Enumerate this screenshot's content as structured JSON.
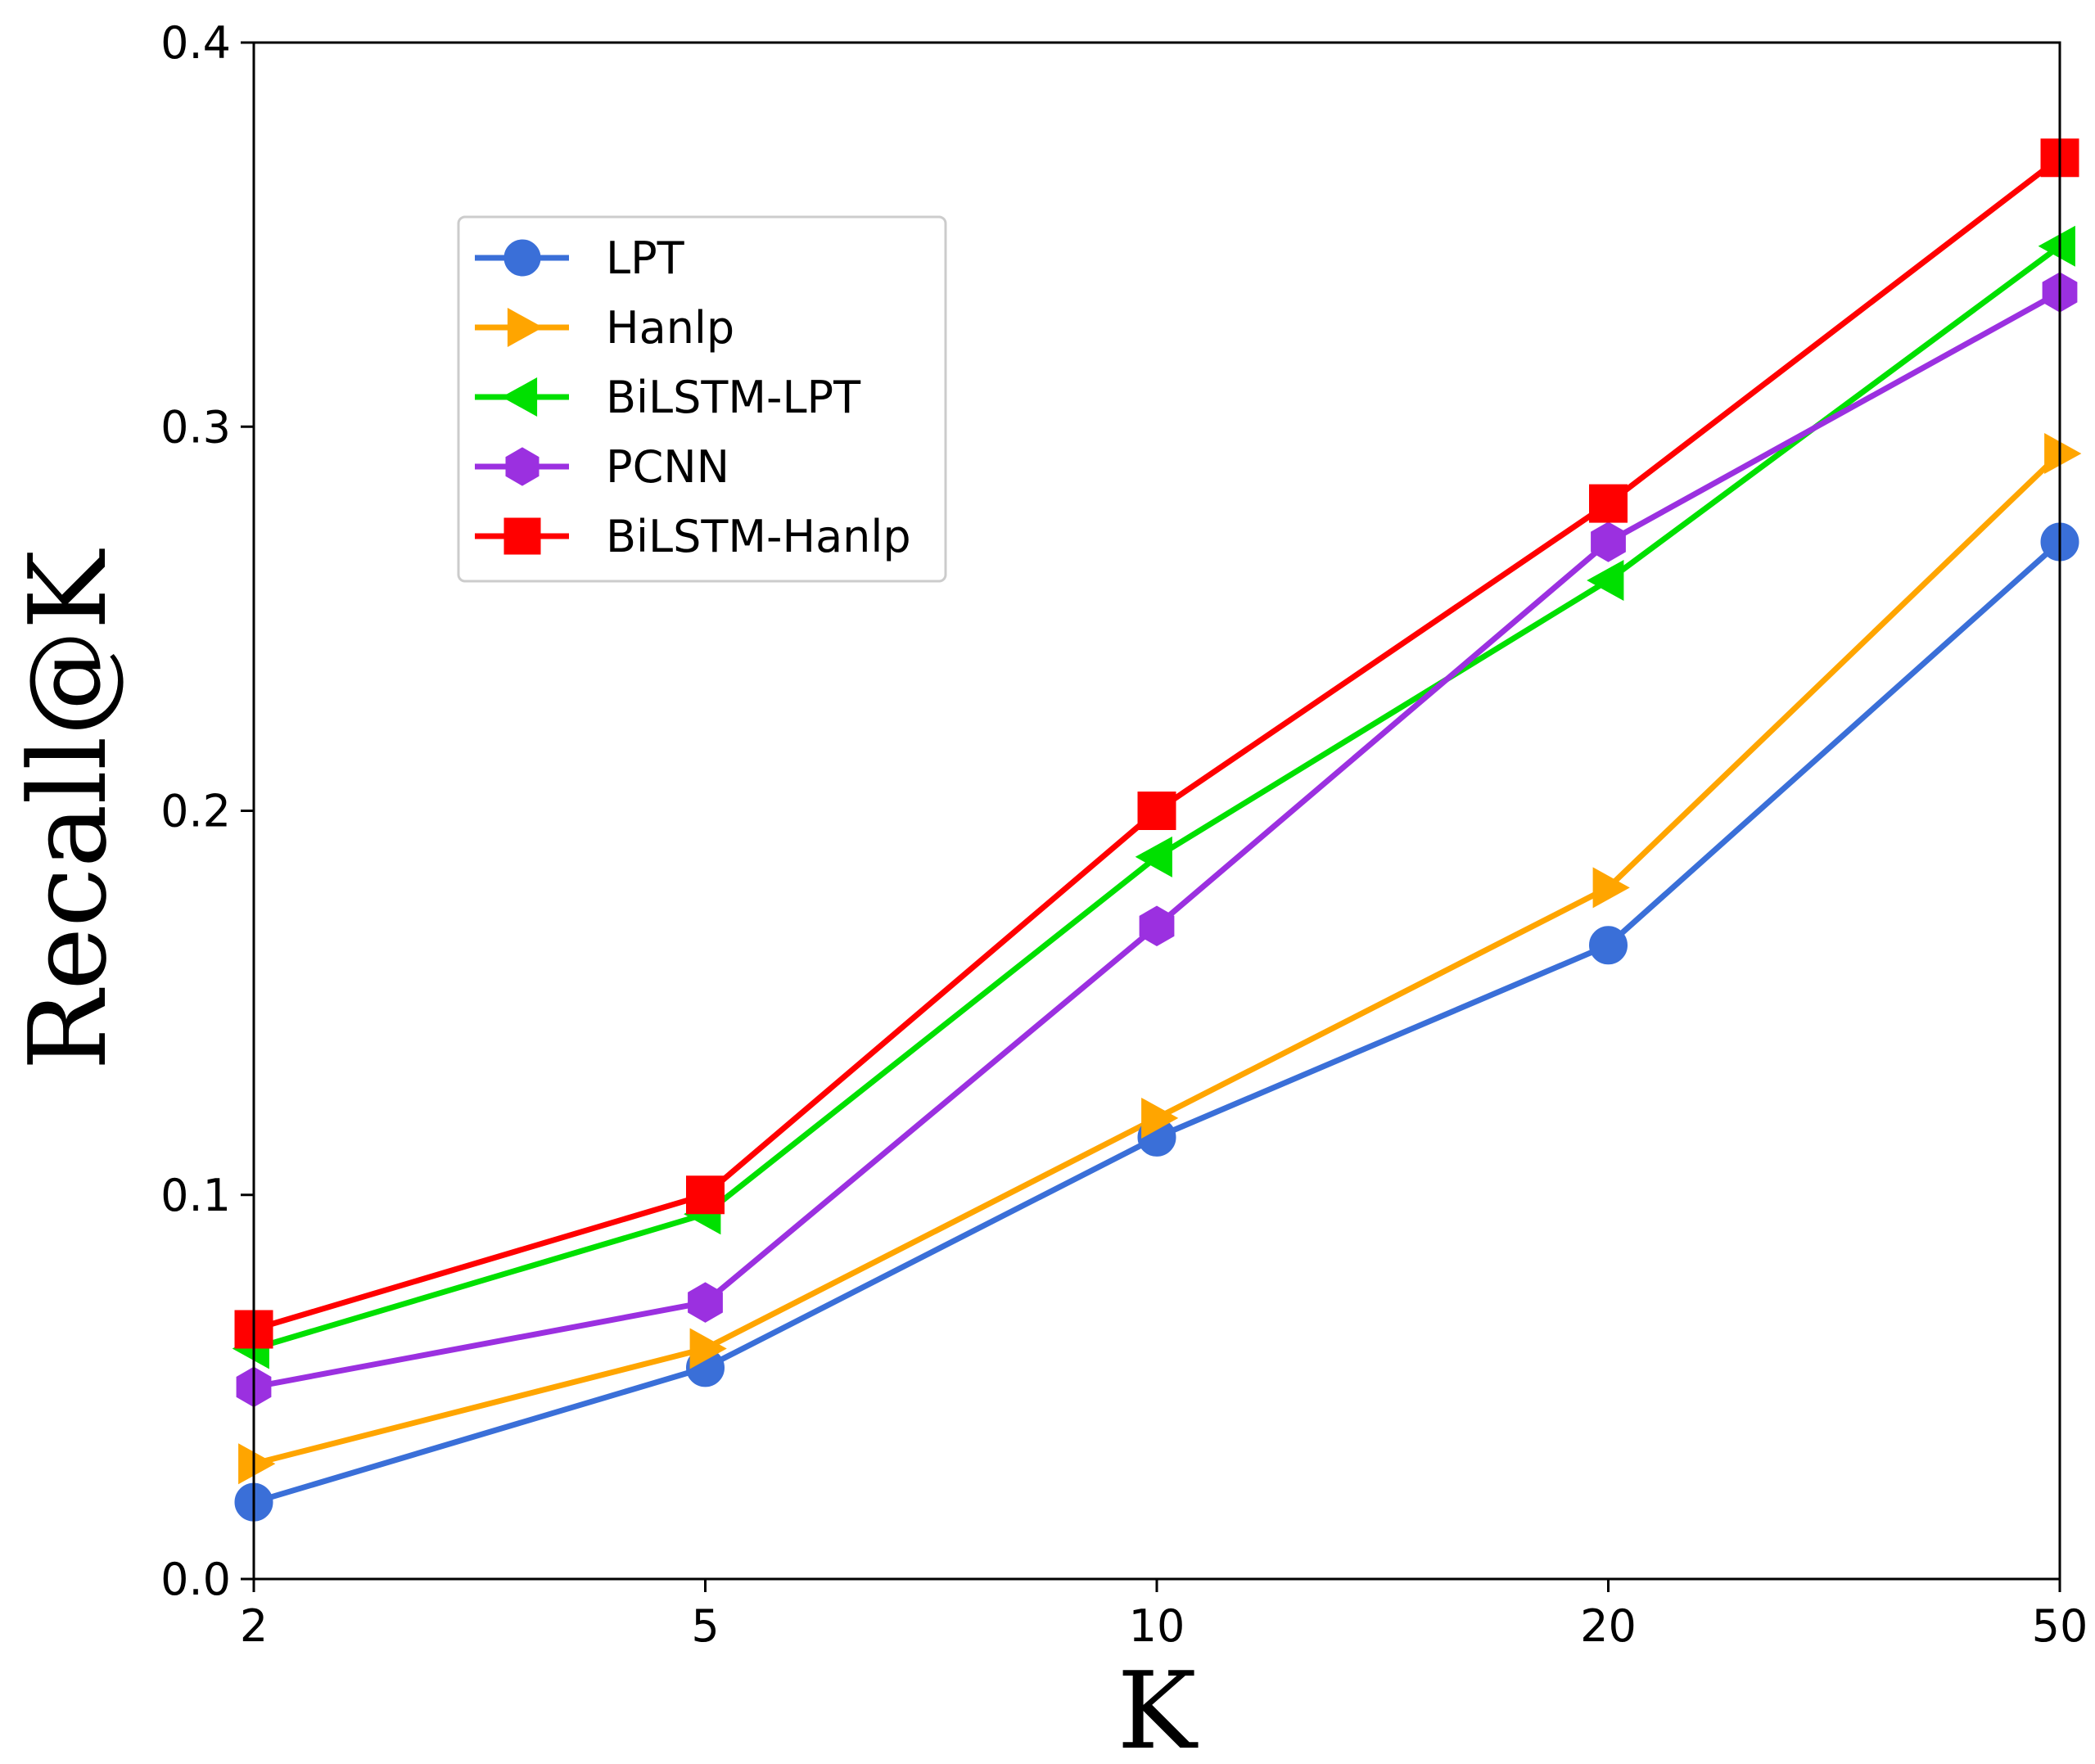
{
  "chart_data": {
    "type": "line",
    "title": "",
    "xlabel": "K",
    "ylabel": "Recall@K",
    "x_scale": "categorical-evenly-spaced",
    "categories": [
      "2",
      "5",
      "10",
      "20",
      "50"
    ],
    "ylim": [
      0.0,
      0.4
    ],
    "yticks": [
      "0.0",
      "0.1",
      "0.2",
      "0.3",
      "0.4"
    ],
    "grid": false,
    "legend_position": "upper-left",
    "series": [
      {
        "name": "LPT",
        "color": "#3a6fd8",
        "marker": "circle",
        "values": [
          0.02,
          0.055,
          0.115,
          0.165,
          0.27
        ]
      },
      {
        "name": "Hanlp",
        "color": "#ffa500",
        "marker": "triangle-right",
        "values": [
          0.03,
          0.06,
          0.12,
          0.18,
          0.293
        ]
      },
      {
        "name": "BiLSTM-LPT",
        "color": "#00e000",
        "marker": "triangle-left",
        "values": [
          0.06,
          0.095,
          0.188,
          0.26,
          0.347
        ]
      },
      {
        "name": "PCNN",
        "color": "#9b30e0",
        "marker": "hexagon",
        "values": [
          0.05,
          0.072,
          0.17,
          0.27,
          0.335
        ]
      },
      {
        "name": "BiLSTM-Hanlp",
        "color": "#ff0000",
        "marker": "square",
        "values": [
          0.065,
          0.1,
          0.2,
          0.28,
          0.37
        ]
      }
    ]
  }
}
